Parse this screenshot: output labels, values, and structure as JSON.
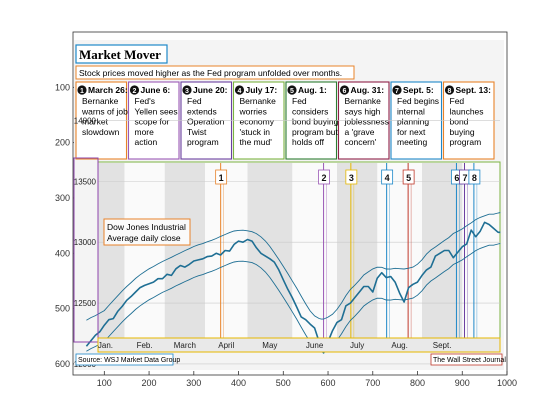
{
  "chart_data": {
    "type": "line",
    "title": "Market Mover",
    "subtitle": "Stock prices moved higher as the Fed program unfolded over months.",
    "series_label": [
      "Dow Jones Industrial",
      "Average daily close"
    ],
    "source": "Source: WSJ Market Data Group",
    "credit": "The Wall Street Journal",
    "months": [
      "Jan.",
      "Feb.",
      "March",
      "April",
      "May",
      "June",
      "July",
      "Aug.",
      "Sept."
    ],
    "y_ticks": [
      "14000",
      "13500",
      "13000",
      "12500",
      "12000"
    ],
    "outer_axis": {
      "x_ticks": [
        "100",
        "200",
        "300",
        "400",
        "500",
        "600",
        "700",
        "800",
        "900",
        "1000"
      ],
      "y_ticks": [
        "100",
        "200",
        "300",
        "400",
        "500",
        "600"
      ],
      "xlim": [
        30,
        1000
      ],
      "ylim": [
        620,
        0
      ]
    },
    "events": [
      {
        "num": "1",
        "date": "March 26:",
        "lines": [
          "Bernanke",
          "warns of job",
          "market",
          "slowdown"
        ],
        "color": "#e8832a"
      },
      {
        "num": "2",
        "date": "June 6:",
        "lines": [
          "Fed's",
          "Yellen sees",
          "scope for",
          "more",
          "action"
        ],
        "color": "#9b59b6"
      },
      {
        "num": "3",
        "date": "June 20:",
        "lines": [
          "Fed",
          "extends",
          "Operation",
          "Twist",
          "program"
        ],
        "color": "#6b3fa0"
      },
      {
        "num": "4",
        "date": "July 17:",
        "lines": [
          "Bernanke",
          "worries",
          "economy",
          "'stuck in",
          "the mud'"
        ],
        "color": "#7cb342"
      },
      {
        "num": "5",
        "date": "Aug. 1:",
        "lines": [
          "Fed",
          "considers",
          "bond buying",
          "program but",
          "holds off"
        ],
        "color": "#2e7d32"
      },
      {
        "num": "6",
        "date": "Aug. 31:",
        "lines": [
          "Bernanke",
          "says high",
          "joblessness",
          "a 'grave",
          "concern'"
        ],
        "color": "#8e2048"
      },
      {
        "num": "7",
        "date": "Sept. 5:",
        "lines": [
          "Fed begins",
          "internal",
          "planning",
          "for next",
          "meeting"
        ],
        "color": "#1e88c8"
      },
      {
        "num": "8",
        "date": "Sept. 13:",
        "lines": [
          "Fed",
          "launches",
          "bond",
          "buying",
          "program"
        ],
        "color": "#e8832a"
      }
    ],
    "markers": [
      {
        "label": "1",
        "x": 360,
        "color": "#e8832a"
      },
      {
        "label": "2",
        "x": 590,
        "color": "#9b59b6"
      },
      {
        "label": "3",
        "x": 651,
        "color": "#e6b800"
      },
      {
        "label": "4",
        "x": 731,
        "color": "#1e88c8"
      },
      {
        "label": "5",
        "x": 779,
        "color": "#c0392b"
      },
      {
        "label": "6",
        "x": 887,
        "color": "#1e88c8"
      },
      {
        "label": "7",
        "x": 905,
        "color": "#6b3fa0"
      },
      {
        "label": "8",
        "x": 926,
        "color": "#1e88c8"
      }
    ],
    "dow": {
      "x": [
        60,
        70,
        80,
        90,
        100,
        110,
        120,
        130,
        140,
        150,
        160,
        170,
        180,
        190,
        200,
        210,
        220,
        230,
        240,
        250,
        260,
        270,
        280,
        290,
        300,
        310,
        320,
        330,
        340,
        350,
        360,
        370,
        380,
        390,
        400,
        410,
        420,
        430,
        440,
        450,
        460,
        470,
        480,
        490,
        500,
        510,
        520,
        530,
        540,
        550,
        560,
        570,
        580,
        585,
        590,
        600,
        610,
        620,
        630,
        640,
        650,
        660,
        670,
        680,
        690,
        700,
        710,
        720,
        730,
        740,
        750,
        760,
        770,
        780,
        790,
        800,
        810,
        820,
        830,
        840,
        850,
        860,
        870,
        880,
        890,
        900,
        910,
        920,
        930,
        940,
        950,
        960,
        970,
        980,
        985
      ],
      "y": [
        568,
        558,
        548,
        542,
        530,
        520,
        518,
        505,
        496,
        485,
        478,
        470,
        462,
        458,
        455,
        452,
        446,
        446,
        438,
        440,
        428,
        422,
        425,
        420,
        414,
        412,
        410,
        406,
        405,
        400,
        403,
        395,
        396,
        384,
        378,
        380,
        375,
        378,
        390,
        400,
        405,
        410,
        416,
        430,
        448,
        465,
        480,
        497,
        515,
        520,
        528,
        535,
        560,
        575,
        580,
        560,
        540,
        525,
        520,
        495,
        490,
        480,
        470,
        460,
        460,
        470,
        445,
        435,
        444,
        442,
        452,
        472,
        488,
        462,
        456,
        452,
        440,
        430,
        425,
        405,
        400,
        395,
        395,
        408,
        398,
        388,
        383,
        358,
        370,
        360,
        344,
        348,
        355,
        362,
        362
      ]
    }
  }
}
